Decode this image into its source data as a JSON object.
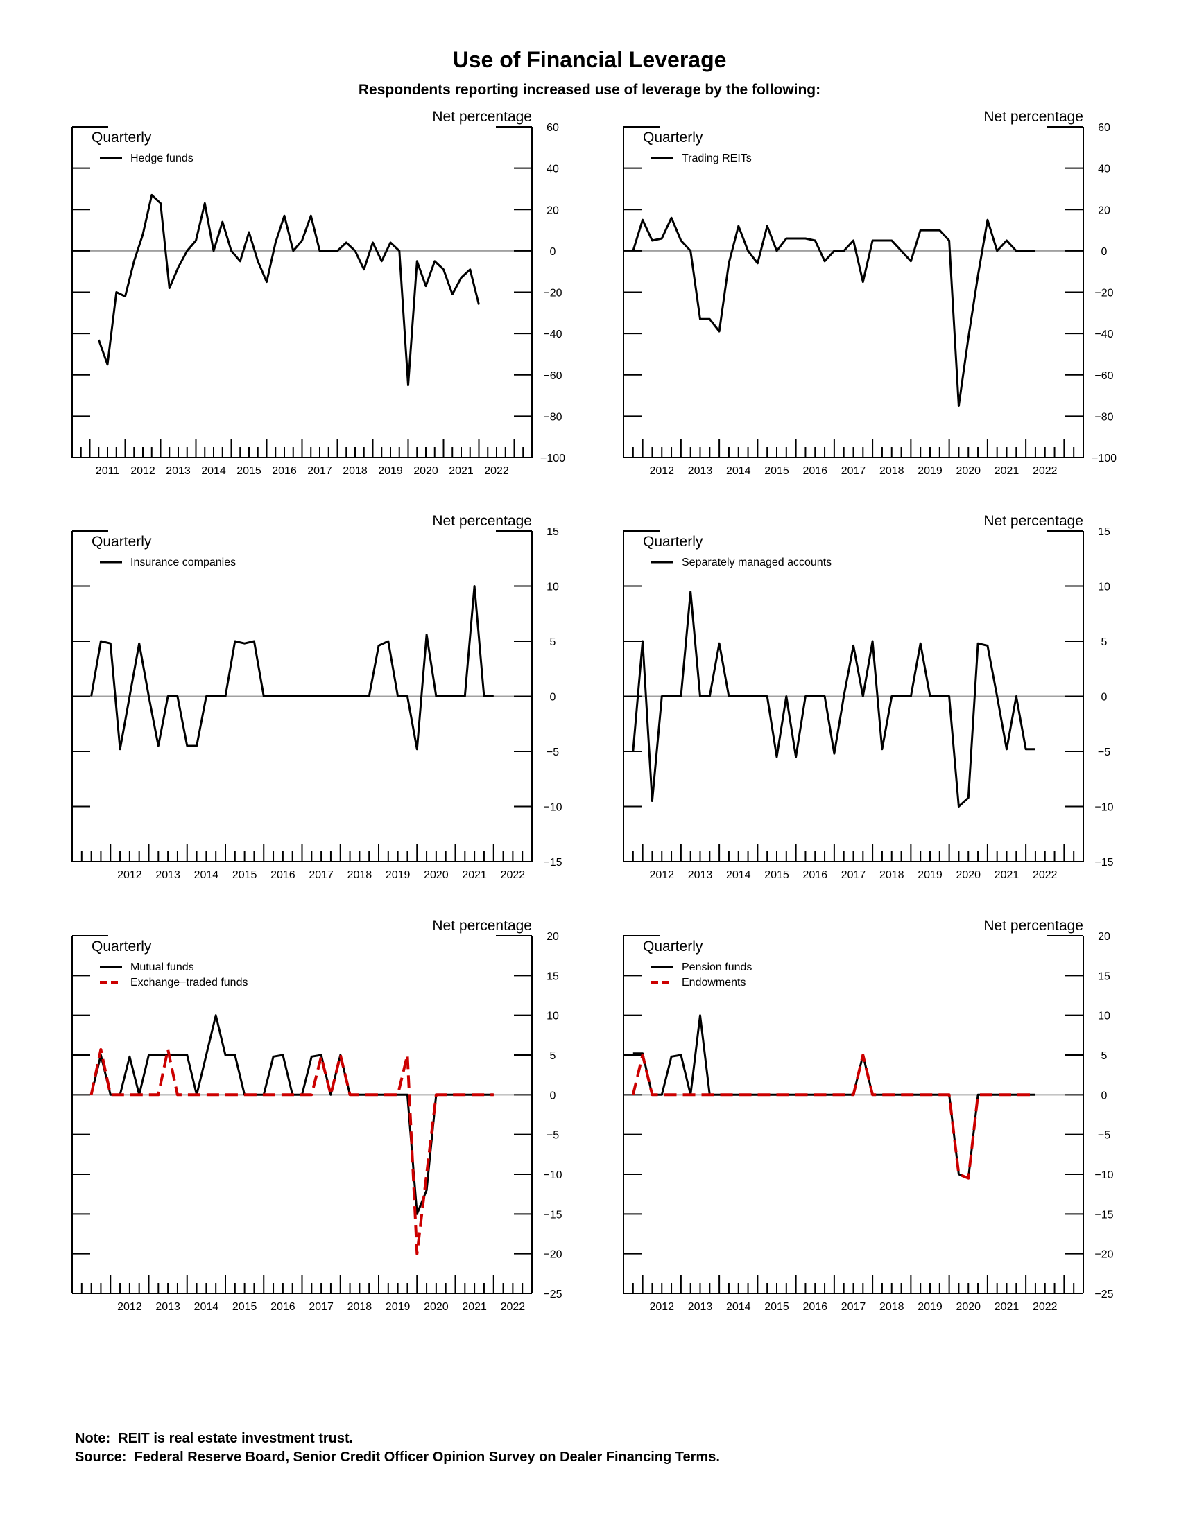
{
  "title": "Use of Financial Leverage",
  "subtitle": "Respondents reporting increased use of leverage by the following:",
  "notes": {
    "note": "Note:  REIT is real estate investment trust.",
    "source": "Source:  Federal Reserve Board, Senior Credit Officer Opinion Survey on Dealer Financing Terms."
  },
  "colors": {
    "primary": "#000000",
    "secondary": "#cc0000",
    "zero_line": "#a0a0a0"
  },
  "chart_data": [
    {
      "type": "line",
      "frequency_label": "Quarterly",
      "ylabel": "Net percentage",
      "ylim": [
        -100,
        60
      ],
      "yticks": [
        60,
        40,
        20,
        0,
        -20,
        -40,
        -60,
        -80,
        -100
      ],
      "xlim": [
        2010.5,
        2023.5
      ],
      "year_labels": [
        "2011",
        "2012",
        "2013",
        "2014",
        "2015",
        "2016",
        "2017",
        "2018",
        "2019",
        "2020",
        "2021",
        "2022"
      ],
      "series": [
        {
          "name": "Hedge funds",
          "style": "solid",
          "x": [
            2011.25,
            2011.5,
            2011.75,
            2012.0,
            2012.25,
            2012.5,
            2012.75,
            2013.0,
            2013.25,
            2013.5,
            2013.75,
            2014.0,
            2014.25,
            2014.5,
            2014.75,
            2015.0,
            2015.25,
            2015.5,
            2015.75,
            2016.0,
            2016.25,
            2016.5,
            2016.75,
            2017.0,
            2017.25,
            2017.5,
            2017.75,
            2018.0,
            2018.25,
            2018.5,
            2018.75,
            2019.0,
            2019.25,
            2019.5,
            2019.75,
            2020.0,
            2020.25,
            2020.5,
            2020.75,
            2021.0,
            2021.25,
            2021.5,
            2021.75,
            2022.0
          ],
          "y": [
            -43,
            -55,
            -20,
            -22,
            -5,
            8,
            27,
            23,
            -18,
            -8,
            0,
            5,
            23,
            0,
            14,
            0,
            -5,
            9,
            -5,
            -15,
            4,
            17,
            0,
            5,
            17,
            0,
            0,
            0,
            4,
            0,
            -9,
            4,
            -5,
            4,
            0,
            -65,
            -5,
            -17,
            -5,
            -9,
            -21,
            -13,
            -9,
            -26
          ]
        }
      ]
    },
    {
      "type": "line",
      "frequency_label": "Quarterly",
      "ylabel": "Net percentage",
      "ylim": [
        -100,
        60
      ],
      "yticks": [
        60,
        40,
        20,
        0,
        -20,
        -40,
        -60,
        -80,
        -100
      ],
      "xlim": [
        2011.5,
        2023.5
      ],
      "year_labels": [
        "2012",
        "2013",
        "2014",
        "2015",
        "2016",
        "2017",
        "2018",
        "2019",
        "2020",
        "2021",
        "2022"
      ],
      "series": [
        {
          "name": "Trading REITs",
          "style": "solid",
          "x": [
            2011.75,
            2012.0,
            2012.25,
            2012.5,
            2012.75,
            2013.0,
            2013.25,
            2013.5,
            2013.75,
            2014.0,
            2014.25,
            2014.5,
            2014.75,
            2015.0,
            2015.25,
            2015.5,
            2015.75,
            2016.0,
            2016.25,
            2016.5,
            2016.75,
            2017.0,
            2017.25,
            2017.5,
            2017.75,
            2018.0,
            2018.25,
            2018.5,
            2018.75,
            2019.0,
            2019.25,
            2019.5,
            2019.75,
            2020.0,
            2020.25,
            2020.5,
            2020.75,
            2021.0,
            2021.25,
            2021.5,
            2021.75,
            2022.0,
            2022.25
          ],
          "y": [
            0,
            15,
            5,
            6,
            16,
            5,
            0,
            -33,
            -33,
            -39,
            -6,
            12,
            0,
            -6,
            12,
            0,
            6,
            6,
            6,
            5,
            -5,
            0,
            0,
            5,
            -15,
            5,
            5,
            5,
            0,
            -5,
            10,
            10,
            10,
            5,
            -75,
            -42,
            -12,
            15,
            0,
            5,
            0,
            0,
            0
          ]
        }
      ]
    },
    {
      "type": "line",
      "frequency_label": "Quarterly",
      "ylabel": "Net percentage",
      "ylim": [
        -15,
        15
      ],
      "yticks": [
        15,
        10,
        5,
        0,
        -5,
        -10,
        -15
      ],
      "xlim": [
        2011.0,
        2023.0
      ],
      "year_labels": [
        "2012",
        "2013",
        "2014",
        "2015",
        "2016",
        "2017",
        "2018",
        "2019",
        "2020",
        "2021",
        "2022"
      ],
      "series": [
        {
          "name": "Insurance companies",
          "style": "solid",
          "x": [
            2011.5,
            2011.75,
            2012.0,
            2012.25,
            2012.5,
            2012.75,
            2013.0,
            2013.25,
            2013.5,
            2013.75,
            2014.0,
            2014.25,
            2014.5,
            2014.75,
            2015.0,
            2015.25,
            2015.5,
            2015.75,
            2016.0,
            2016.25,
            2016.5,
            2016.75,
            2017.0,
            2017.25,
            2017.5,
            2017.75,
            2018.0,
            2018.25,
            2018.5,
            2018.75,
            2019.0,
            2019.25,
            2019.5,
            2019.75,
            2020.0,
            2020.25,
            2020.5,
            2020.75,
            2021.0,
            2021.25,
            2021.5,
            2021.75,
            2022.0
          ],
          "y": [
            0,
            5,
            4.8,
            -4.8,
            0,
            4.8,
            0,
            -4.5,
            0,
            0,
            -4.5,
            -4.5,
            0,
            0,
            0,
            5,
            4.8,
            5,
            0,
            0,
            0,
            0,
            0,
            0,
            0,
            0,
            0,
            0,
            0,
            0,
            4.6,
            5,
            0,
            0,
            -4.8,
            5.6,
            0,
            0,
            0,
            0,
            10,
            0,
            0
          ]
        }
      ]
    },
    {
      "type": "line",
      "frequency_label": "Quarterly",
      "ylabel": "Net percentage",
      "ylim": [
        -15,
        15
      ],
      "yticks": [
        15,
        10,
        5,
        0,
        -5,
        -10,
        -15
      ],
      "xlim": [
        2011.5,
        2023.5
      ],
      "year_labels": [
        "2012",
        "2013",
        "2014",
        "2015",
        "2016",
        "2017",
        "2018",
        "2019",
        "2020",
        "2021",
        "2022"
      ],
      "series": [
        {
          "name": "Separately managed accounts",
          "style": "solid",
          "x": [
            2011.75,
            2012.0,
            2012.25,
            2012.5,
            2012.75,
            2013.0,
            2013.25,
            2013.5,
            2013.75,
            2014.0,
            2014.25,
            2014.5,
            2014.75,
            2015.0,
            2015.25,
            2015.5,
            2015.75,
            2016.0,
            2016.25,
            2016.5,
            2016.75,
            2017.0,
            2017.25,
            2017.5,
            2017.75,
            2018.0,
            2018.25,
            2018.5,
            2018.75,
            2019.0,
            2019.25,
            2019.5,
            2019.75,
            2020.0,
            2020.25,
            2020.5,
            2020.75,
            2021.0,
            2021.25,
            2021.5,
            2021.75,
            2022.0,
            2022.25
          ],
          "y": [
            -5,
            5,
            -9.5,
            0,
            0,
            0,
            9.5,
            0,
            0,
            4.8,
            0,
            0,
            0,
            0,
            0,
            -5.5,
            0,
            -5.5,
            0,
            0,
            0,
            -5.2,
            0,
            4.6,
            0,
            5,
            -4.8,
            0,
            0,
            0,
            4.8,
            0,
            0,
            0,
            -10,
            -9.2,
            4.8,
            4.6,
            0,
            -4.8,
            0,
            -4.8,
            -4.8
          ]
        }
      ]
    },
    {
      "type": "line",
      "frequency_label": "Quarterly",
      "ylabel": "Net percentage",
      "ylim": [
        -25,
        20
      ],
      "yticks": [
        20,
        15,
        10,
        5,
        0,
        -5,
        -10,
        -15,
        -20,
        -25
      ],
      "xlim": [
        2011.0,
        2023.0
      ],
      "year_labels": [
        "2012",
        "2013",
        "2014",
        "2015",
        "2016",
        "2017",
        "2018",
        "2019",
        "2020",
        "2021",
        "2022"
      ],
      "series": [
        {
          "name": "Mutual funds",
          "style": "solid",
          "x": [
            2011.5,
            2011.75,
            2012.0,
            2012.25,
            2012.5,
            2012.75,
            2013.0,
            2013.25,
            2013.5,
            2013.75,
            2014.0,
            2014.25,
            2014.5,
            2014.75,
            2015.0,
            2015.25,
            2015.5,
            2015.75,
            2016.0,
            2016.25,
            2016.5,
            2016.75,
            2017.0,
            2017.25,
            2017.5,
            2017.75,
            2018.0,
            2018.25,
            2018.5,
            2018.75,
            2019.0,
            2019.25,
            2019.5,
            2019.75,
            2020.0,
            2020.25,
            2020.5,
            2020.75,
            2021.0,
            2021.25,
            2021.5,
            2021.75,
            2022.0
          ],
          "y": [
            0,
            5,
            0,
            0,
            4.8,
            0,
            5,
            5,
            5,
            5,
            5,
            0,
            5,
            10,
            5,
            5,
            0,
            0,
            0,
            4.8,
            5,
            0,
            0,
            4.8,
            5,
            0,
            5,
            0,
            0,
            0,
            0,
            0,
            0,
            0,
            -15,
            -12,
            0,
            0,
            0,
            0,
            0,
            0,
            0
          ]
        },
        {
          "name": "Exchange−traded funds",
          "style": "dashed",
          "x": [
            2011.5,
            2011.75,
            2012.0,
            2012.25,
            2012.5,
            2012.75,
            2013.0,
            2013.25,
            2013.5,
            2013.75,
            2014.0,
            2014.25,
            2014.5,
            2014.75,
            2015.0,
            2015.25,
            2015.5,
            2015.75,
            2016.0,
            2016.25,
            2016.5,
            2016.75,
            2017.0,
            2017.25,
            2017.5,
            2017.75,
            2018.0,
            2018.25,
            2018.5,
            2018.75,
            2019.0,
            2019.25,
            2019.5,
            2019.75,
            2020.0,
            2020.25,
            2020.5,
            2020.75,
            2021.0,
            2021.25,
            2021.5,
            2021.75,
            2022.0
          ],
          "y": [
            0,
            5.7,
            0,
            0,
            0,
            0,
            0,
            0,
            5.7,
            0,
            0,
            0,
            0,
            0,
            0,
            0,
            0,
            0,
            0,
            0,
            0,
            0,
            0,
            0,
            4.8,
            0,
            5,
            0,
            0,
            0,
            0,
            0,
            0,
            5,
            -20,
            -10,
            0,
            0,
            0,
            0,
            0,
            0,
            0
          ]
        }
      ]
    },
    {
      "type": "line",
      "frequency_label": "Quarterly",
      "ylabel": "Net percentage",
      "ylim": [
        -25,
        20
      ],
      "yticks": [
        20,
        15,
        10,
        5,
        0,
        -5,
        -10,
        -15,
        -20,
        -25
      ],
      "xlim": [
        2011.5,
        2023.5
      ],
      "year_labels": [
        "2012",
        "2013",
        "2014",
        "2015",
        "2016",
        "2017",
        "2018",
        "2019",
        "2020",
        "2021",
        "2022"
      ],
      "series": [
        {
          "name": "Pension funds",
          "style": "solid",
          "x": [
            2011.75,
            2012.0,
            2012.25,
            2012.5,
            2012.75,
            2013.0,
            2013.25,
            2013.5,
            2013.75,
            2014.0,
            2014.25,
            2014.5,
            2014.75,
            2015.0,
            2015.25,
            2015.5,
            2015.75,
            2016.0,
            2016.25,
            2016.5,
            2016.75,
            2017.0,
            2017.25,
            2017.5,
            2017.75,
            2018.0,
            2018.25,
            2018.5,
            2018.75,
            2019.0,
            2019.25,
            2019.5,
            2019.75,
            2020.0,
            2020.25,
            2020.5,
            2020.75,
            2021.0,
            2021.25,
            2021.5,
            2021.75,
            2022.0,
            2022.25
          ],
          "y": [
            5.2,
            5.2,
            0,
            0,
            4.8,
            5,
            0,
            10,
            0,
            0,
            0,
            0,
            0,
            0,
            0,
            0,
            0,
            0,
            0,
            0,
            0,
            0,
            0,
            0,
            5,
            0,
            0,
            0,
            0,
            0,
            0,
            0,
            0,
            0,
            -10,
            -10.5,
            0,
            0,
            0,
            0,
            0,
            0,
            0
          ]
        },
        {
          "name": "Endowments",
          "style": "dashed",
          "x": [
            2011.75,
            2012.0,
            2012.25,
            2012.5,
            2012.75,
            2013.0,
            2013.25,
            2013.5,
            2013.75,
            2014.0,
            2014.25,
            2014.5,
            2014.75,
            2015.0,
            2015.25,
            2015.5,
            2015.75,
            2016.0,
            2016.25,
            2016.5,
            2016.75,
            2017.0,
            2017.25,
            2017.5,
            2017.75,
            2018.0,
            2018.25,
            2018.5,
            2018.75,
            2019.0,
            2019.25,
            2019.5,
            2019.75,
            2020.0,
            2020.25,
            2020.5,
            2020.75,
            2021.0,
            2021.25,
            2021.5,
            2021.75,
            2022.0,
            2022.25
          ],
          "y": [
            0,
            5,
            0,
            0,
            0,
            0,
            0,
            0,
            0,
            0,
            0,
            0,
            0,
            0,
            0,
            0,
            0,
            0,
            0,
            0,
            0,
            0,
            0,
            0,
            5,
            0,
            0,
            0,
            0,
            0,
            0,
            0,
            0,
            0,
            -10,
            -10.5,
            0,
            0,
            0,
            0,
            0,
            0,
            0
          ]
        }
      ]
    }
  ]
}
